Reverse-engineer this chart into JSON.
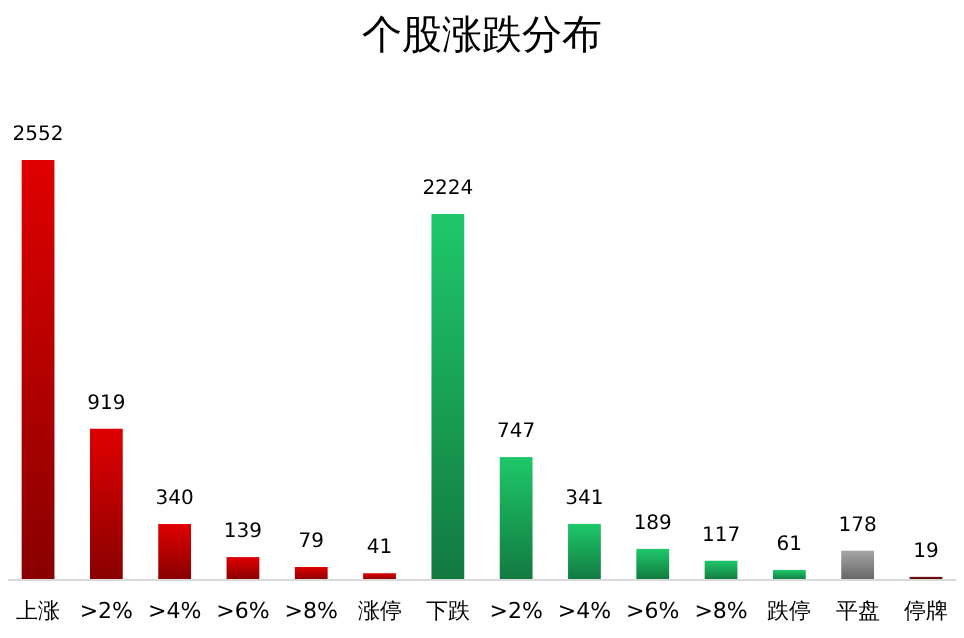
{
  "chart_data": {
    "type": "bar",
    "title": "个股涨跌分布",
    "categories": [
      "上涨",
      ">2%",
      ">4%",
      ">6%",
      ">8%",
      "涨停",
      "下跌",
      ">2%",
      ">4%",
      ">6%",
      ">8%",
      "跌停",
      "平盘",
      "停牌"
    ],
    "values": [
      2552,
      919,
      340,
      139,
      79,
      41,
      2224,
      747,
      341,
      189,
      117,
      61,
      178,
      19
    ],
    "colors": [
      "#e00000",
      "#e00000",
      "#e00000",
      "#e00000",
      "#e00000",
      "#e00000",
      "#1ec86a",
      "#1ec86a",
      "#1ec86a",
      "#1ec86a",
      "#1ec86a",
      "#1ec86a",
      "#a6a6a6",
      "#7a1010"
    ],
    "data_labels": true
  }
}
